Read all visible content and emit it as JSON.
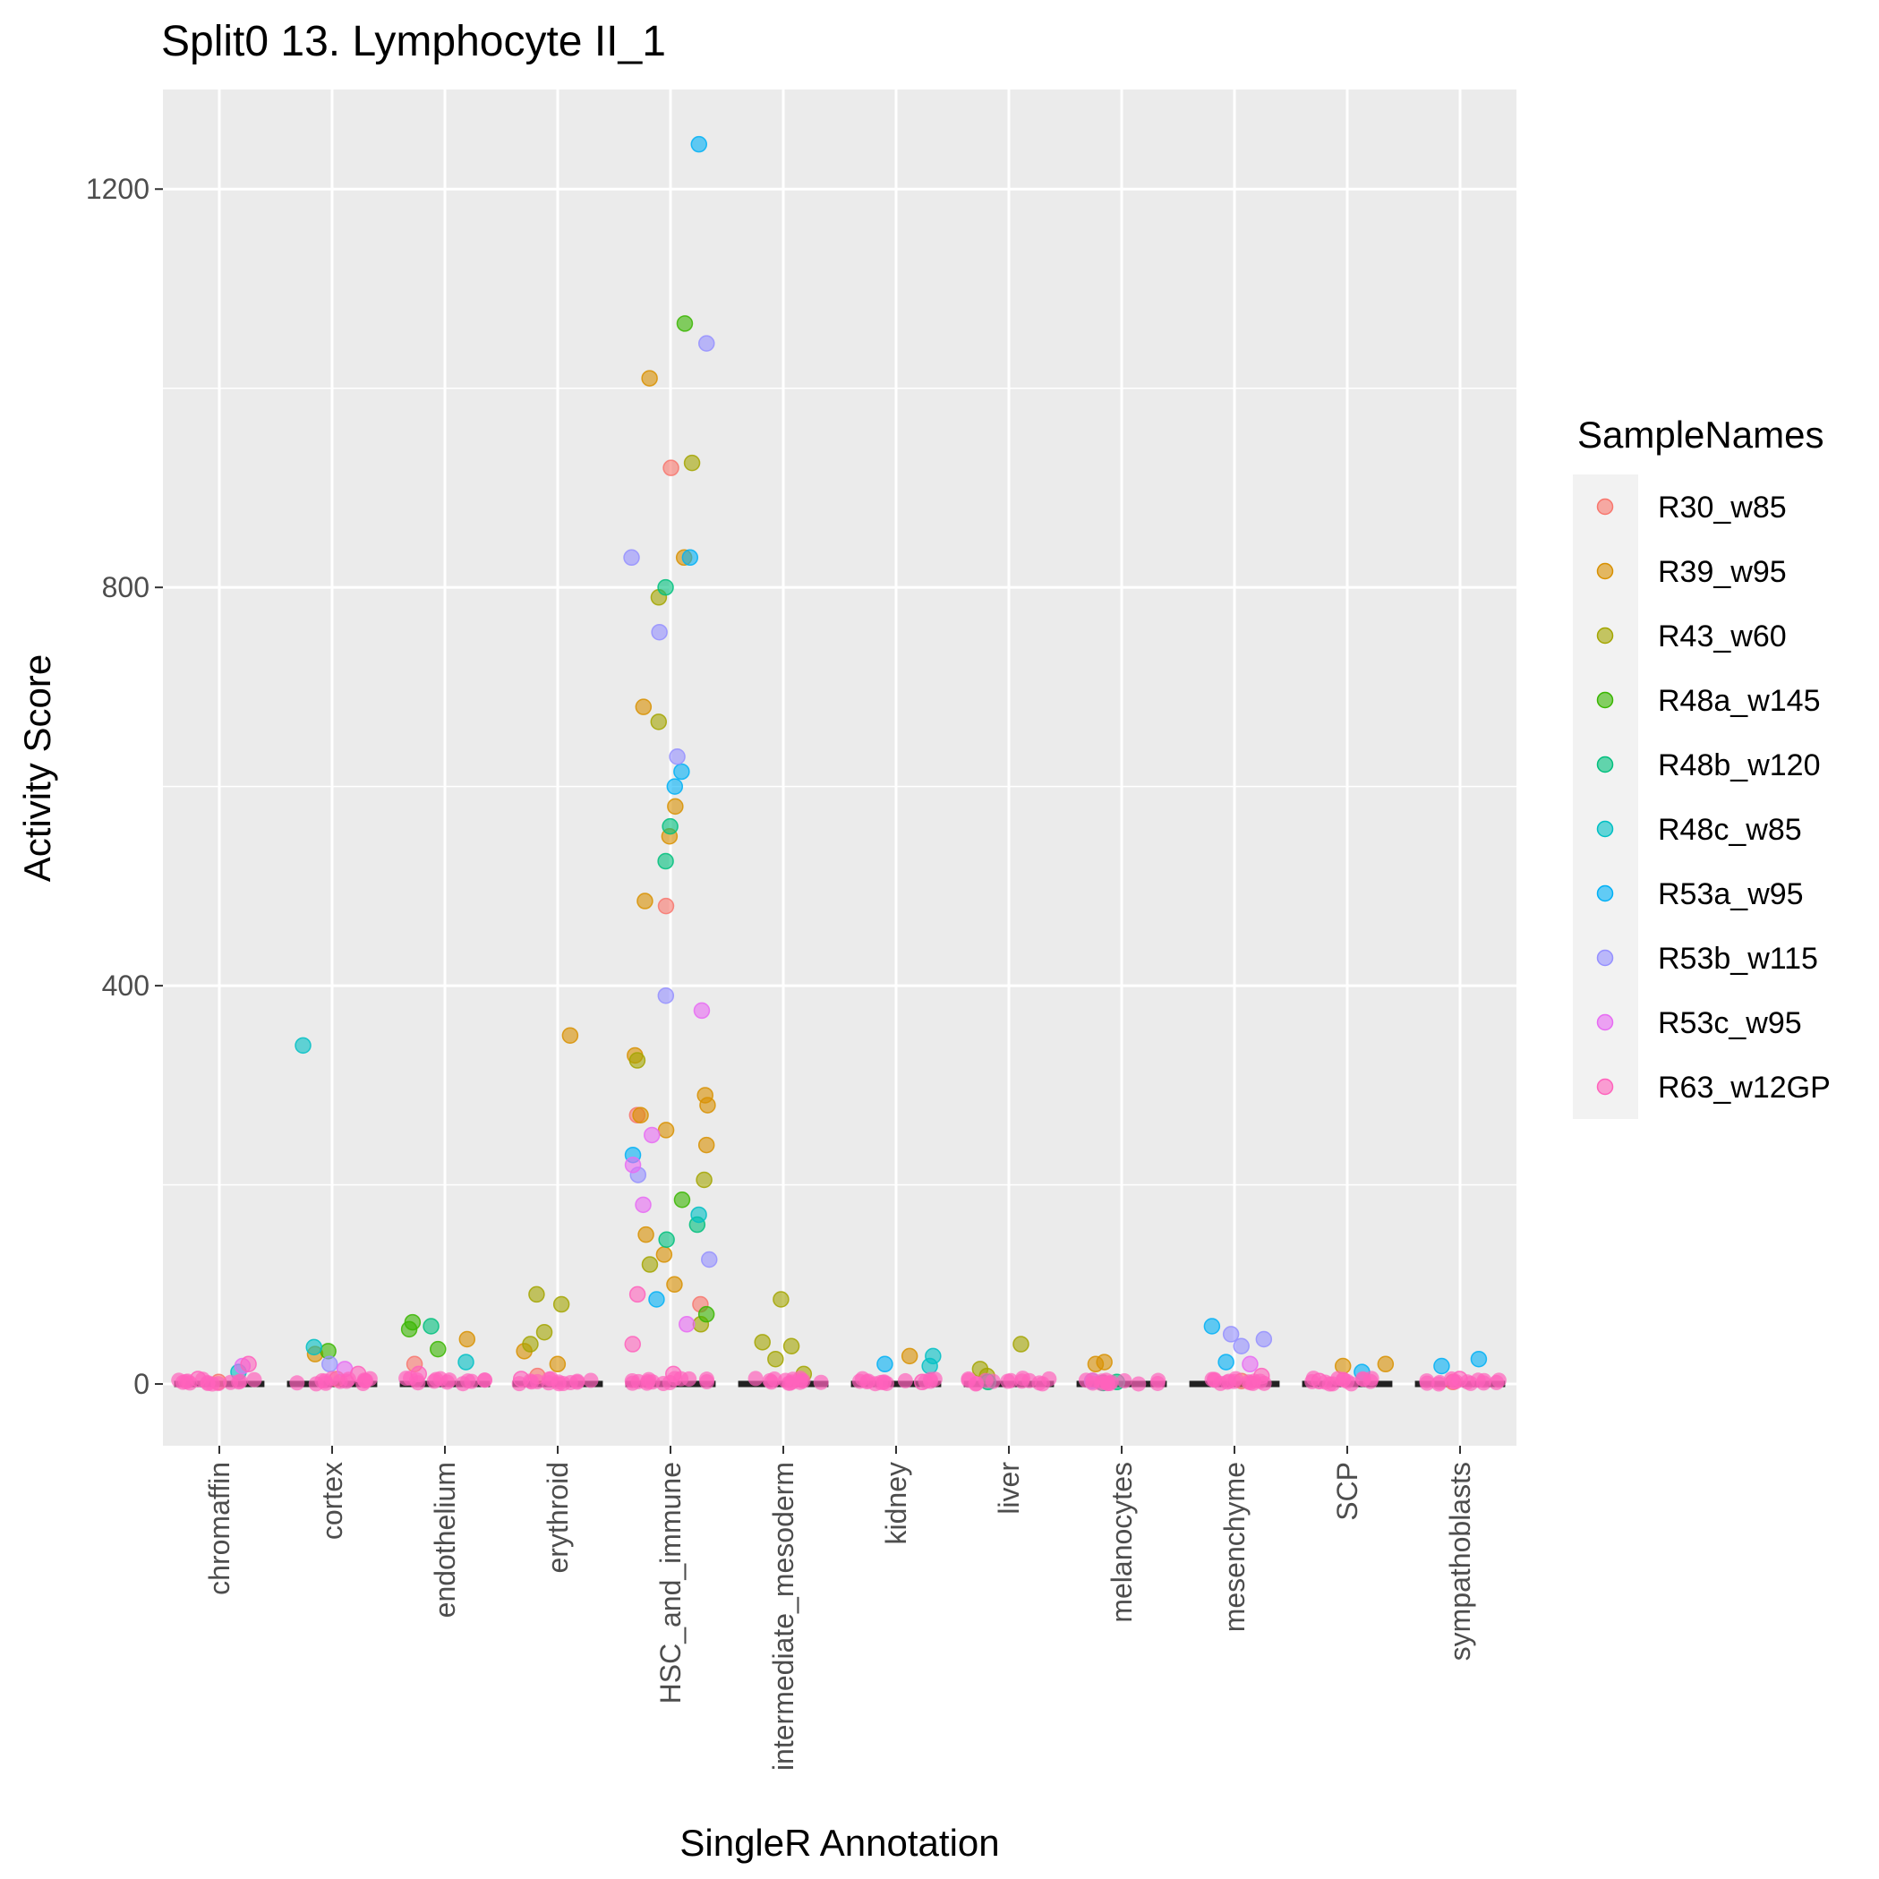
{
  "chart_data": {
    "type": "scatter",
    "title": "Split0 13. Lymphocyte II_1",
    "xlabel": "SingleR Annotation",
    "ylabel": "Activity Score",
    "ylim": [
      -62,
      1300
    ],
    "yticks": [
      0,
      400,
      800,
      1200
    ],
    "categories": [
      "chromaffin",
      "cortex",
      "endothelium",
      "erythroid",
      "HSC_and_immune",
      "intermediate_mesoderm",
      "kidney",
      "liver",
      "melanocytes",
      "mesenchyme",
      "SCP",
      "sympathoblasts"
    ],
    "legend": {
      "title": "SampleNames",
      "position": "right"
    },
    "grid": true,
    "series": [
      {
        "name": "R30_w85",
        "color": "#F8766D",
        "points": [
          {
            "x": "chromaffin",
            "y": 2
          },
          {
            "x": "cortex",
            "y": 5
          },
          {
            "x": "endothelium",
            "y": 20
          },
          {
            "x": "erythroid",
            "y": 8
          },
          {
            "x": "HSC_and_immune",
            "y": 480
          },
          {
            "x": "HSC_and_immune",
            "y": 920
          },
          {
            "x": "HSC_and_immune",
            "y": 270
          },
          {
            "x": "HSC_and_immune",
            "y": 80
          },
          {
            "x": "mesenchyme",
            "y": 3
          },
          {
            "x": "sympathoblasts",
            "y": 2
          }
        ]
      },
      {
        "name": "R39_w95",
        "color": "#D89000",
        "points": [
          {
            "x": "cortex",
            "y": 30
          },
          {
            "x": "endothelium",
            "y": 45
          },
          {
            "x": "erythroid",
            "y": 350
          },
          {
            "x": "erythroid",
            "y": 33
          },
          {
            "x": "erythroid",
            "y": 20
          },
          {
            "x": "HSC_and_immune",
            "y": 1010
          },
          {
            "x": "HSC_and_immune",
            "y": 830
          },
          {
            "x": "HSC_and_immune",
            "y": 680
          },
          {
            "x": "HSC_and_immune",
            "y": 580
          },
          {
            "x": "HSC_and_immune",
            "y": 550
          },
          {
            "x": "HSC_and_immune",
            "y": 485
          },
          {
            "x": "HSC_and_immune",
            "y": 330
          },
          {
            "x": "HSC_and_immune",
            "y": 290
          },
          {
            "x": "HSC_and_immune",
            "y": 280
          },
          {
            "x": "HSC_and_immune",
            "y": 270
          },
          {
            "x": "HSC_and_immune",
            "y": 255
          },
          {
            "x": "HSC_and_immune",
            "y": 240
          },
          {
            "x": "HSC_and_immune",
            "y": 150
          },
          {
            "x": "HSC_and_immune",
            "y": 130
          },
          {
            "x": "HSC_and_immune",
            "y": 100
          },
          {
            "x": "kidney",
            "y": 28
          },
          {
            "x": "melanocytes",
            "y": 22
          },
          {
            "x": "melanocytes",
            "y": 20
          },
          {
            "x": "SCP",
            "y": 20
          },
          {
            "x": "SCP",
            "y": 18
          }
        ]
      },
      {
        "name": "R43_w60",
        "color": "#A3A500",
        "points": [
          {
            "x": "erythroid",
            "y": 90
          },
          {
            "x": "erythroid",
            "y": 80
          },
          {
            "x": "erythroid",
            "y": 52
          },
          {
            "x": "erythroid",
            "y": 40
          },
          {
            "x": "HSC_and_immune",
            "y": 925
          },
          {
            "x": "HSC_and_immune",
            "y": 790
          },
          {
            "x": "HSC_and_immune",
            "y": 665
          },
          {
            "x": "HSC_and_immune",
            "y": 325
          },
          {
            "x": "HSC_and_immune",
            "y": 205
          },
          {
            "x": "HSC_and_immune",
            "y": 120
          },
          {
            "x": "HSC_and_immune",
            "y": 60
          },
          {
            "x": "intermediate_mesoderm",
            "y": 85
          },
          {
            "x": "intermediate_mesoderm",
            "y": 42
          },
          {
            "x": "intermediate_mesoderm",
            "y": 38
          },
          {
            "x": "intermediate_mesoderm",
            "y": 25
          },
          {
            "x": "intermediate_mesoderm",
            "y": 10
          },
          {
            "x": "liver",
            "y": 40
          },
          {
            "x": "liver",
            "y": 15
          },
          {
            "x": "liver",
            "y": 8
          }
        ]
      },
      {
        "name": "R48a_w145",
        "color": "#39B600",
        "points": [
          {
            "x": "cortex",
            "y": 33
          },
          {
            "x": "endothelium",
            "y": 62
          },
          {
            "x": "endothelium",
            "y": 55
          },
          {
            "x": "endothelium",
            "y": 35
          },
          {
            "x": "HSC_and_immune",
            "y": 1065
          },
          {
            "x": "HSC_and_immune",
            "y": 185
          },
          {
            "x": "HSC_and_immune",
            "y": 70
          }
        ]
      },
      {
        "name": "R48b_w120",
        "color": "#00BF7D",
        "points": [
          {
            "x": "endothelium",
            "y": 58
          },
          {
            "x": "HSC_and_immune",
            "y": 800
          },
          {
            "x": "HSC_and_immune",
            "y": 560
          },
          {
            "x": "HSC_and_immune",
            "y": 525
          },
          {
            "x": "HSC_and_immune",
            "y": 160
          },
          {
            "x": "HSC_and_immune",
            "y": 145
          },
          {
            "x": "melanocytes",
            "y": 2
          },
          {
            "x": "melanocytes",
            "y": 1
          },
          {
            "x": "liver",
            "y": 2
          }
        ]
      },
      {
        "name": "R48c_w85",
        "color": "#00BFC4",
        "points": [
          {
            "x": "chromaffin",
            "y": 12
          },
          {
            "x": "cortex",
            "y": 340
          },
          {
            "x": "cortex",
            "y": 37
          },
          {
            "x": "endothelium",
            "y": 22
          },
          {
            "x": "HSC_and_immune",
            "y": 170
          },
          {
            "x": "kidney",
            "y": 28
          },
          {
            "x": "kidney",
            "y": 18
          }
        ]
      },
      {
        "name": "R53a_w95",
        "color": "#00B0F6",
        "points": [
          {
            "x": "HSC_and_immune",
            "y": 1245
          },
          {
            "x": "HSC_and_immune",
            "y": 830
          },
          {
            "x": "HSC_and_immune",
            "y": 615
          },
          {
            "x": "HSC_and_immune",
            "y": 600
          },
          {
            "x": "HSC_and_immune",
            "y": 230
          },
          {
            "x": "HSC_and_immune",
            "y": 85
          },
          {
            "x": "kidney",
            "y": 20
          },
          {
            "x": "mesenchyme",
            "y": 58
          },
          {
            "x": "mesenchyme",
            "y": 22
          },
          {
            "x": "SCP",
            "y": 12
          },
          {
            "x": "sympathoblasts",
            "y": 25
          },
          {
            "x": "sympathoblasts",
            "y": 18
          }
        ]
      },
      {
        "name": "R53b_w115",
        "color": "#9590FF",
        "points": [
          {
            "x": "HSC_and_immune",
            "y": 1045
          },
          {
            "x": "HSC_and_immune",
            "y": 830
          },
          {
            "x": "HSC_and_immune",
            "y": 755
          },
          {
            "x": "HSC_and_immune",
            "y": 630
          },
          {
            "x": "HSC_and_immune",
            "y": 390
          },
          {
            "x": "HSC_and_immune",
            "y": 210
          },
          {
            "x": "HSC_and_immune",
            "y": 125
          },
          {
            "x": "mesenchyme",
            "y": 50
          },
          {
            "x": "mesenchyme",
            "y": 45
          },
          {
            "x": "mesenchyme",
            "y": 38
          },
          {
            "x": "cortex",
            "y": 20
          },
          {
            "x": "melanocytes",
            "y": 3
          }
        ]
      },
      {
        "name": "R53c_w95",
        "color": "#E76BF3",
        "points": [
          {
            "x": "chromaffin",
            "y": 18
          },
          {
            "x": "HSC_and_immune",
            "y": 375
          },
          {
            "x": "HSC_and_immune",
            "y": 250
          },
          {
            "x": "HSC_and_immune",
            "y": 220
          },
          {
            "x": "HSC_and_immune",
            "y": 180
          },
          {
            "x": "HSC_and_immune",
            "y": 60
          },
          {
            "x": "mesenchyme",
            "y": 20
          },
          {
            "x": "cortex",
            "y": 15
          }
        ]
      },
      {
        "name": "R63_w12GP",
        "color": "#FF62BC",
        "points": [
          {
            "x": "chromaffin",
            "y": 20
          },
          {
            "x": "chromaffin",
            "y": 5
          },
          {
            "x": "cortex",
            "y": 10
          },
          {
            "x": "endothelium",
            "y": 10
          },
          {
            "x": "erythroid",
            "y": 5
          },
          {
            "x": "HSC_and_immune",
            "y": 90
          },
          {
            "x": "HSC_and_immune",
            "y": 40
          },
          {
            "x": "HSC_and_immune",
            "y": 10
          },
          {
            "x": "kidney",
            "y": 2
          },
          {
            "x": "mesenchyme",
            "y": 8
          },
          {
            "x": "SCP",
            "y": 3
          },
          {
            "x": "sympathoblasts",
            "y": 5
          }
        ]
      }
    ]
  }
}
